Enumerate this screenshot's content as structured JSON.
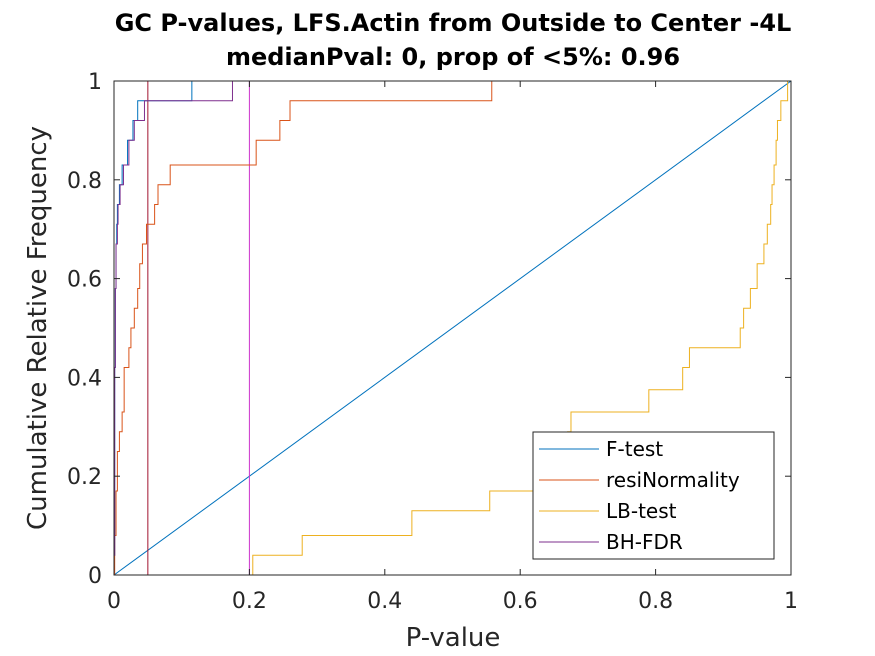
{
  "chart_data": {
    "type": "line",
    "title_line1": "GC P-values, LFS.Actin from Outside to Center -4L",
    "title_line2": "medianPval: 0, prop of <5%: 0.96",
    "xlabel": "P-value",
    "ylabel": "Cumulative Relative Frequency",
    "xlim": [
      0,
      1
    ],
    "ylim": [
      0,
      1
    ],
    "xticks": [
      0,
      0.2,
      0.4,
      0.6,
      0.8,
      1
    ],
    "xtick_labels": [
      "0",
      "0.2",
      "0.4",
      "0.6",
      "0.8",
      "1"
    ],
    "yticks": [
      0,
      0.2,
      0.4,
      0.6,
      0.8,
      1
    ],
    "ytick_labels": [
      "0",
      "0.2",
      "0.4",
      "0.6",
      "0.8",
      "1"
    ],
    "legend_position": "bottom-right",
    "series": [
      {
        "name": "F-test",
        "color": "#0072BD",
        "x": [
          0,
          0.001,
          0.002,
          0.003,
          0.004,
          0.005,
          0.007,
          0.009,
          0.012,
          0.016,
          0.02,
          0.025,
          0.03,
          0.04,
          0.05,
          0.06,
          0.08,
          0.115,
          0.2,
          0.5,
          0.8,
          1
        ],
        "y": [
          0,
          0.42,
          0.58,
          0.67,
          0.71,
          0.75,
          0.79,
          0.79,
          0.83,
          0.83,
          0.88,
          0.88,
          0.92,
          0.92,
          0.96,
          0.96,
          0.96,
          1.0,
          0.2,
          0.5,
          0.8,
          1.0
        ],
        "steps": [
          [
            0,
            0.04
          ],
          [
            0.001,
            0.42
          ],
          [
            0.002,
            0.58
          ],
          [
            0.003,
            0.67
          ],
          [
            0.004,
            0.71
          ],
          [
            0.005,
            0.75
          ],
          [
            0.008,
            0.79
          ],
          [
            0.012,
            0.83
          ],
          [
            0.02,
            0.88
          ],
          [
            0.028,
            0.92
          ],
          [
            0.035,
            0.96
          ],
          [
            0.115,
            1.0
          ]
        ]
      },
      {
        "name": "resiNormality",
        "color": "#D95319",
        "steps": [
          [
            0,
            0.0
          ],
          [
            0.001,
            0.08
          ],
          [
            0.003,
            0.17
          ],
          [
            0.005,
            0.25
          ],
          [
            0.008,
            0.29
          ],
          [
            0.012,
            0.33
          ],
          [
            0.015,
            0.42
          ],
          [
            0.022,
            0.46
          ],
          [
            0.025,
            0.5
          ],
          [
            0.03,
            0.54
          ],
          [
            0.035,
            0.58
          ],
          [
            0.038,
            0.63
          ],
          [
            0.042,
            0.67
          ],
          [
            0.048,
            0.71
          ],
          [
            0.06,
            0.75
          ],
          [
            0.065,
            0.79
          ],
          [
            0.083,
            0.83
          ],
          [
            0.21,
            0.88
          ],
          [
            0.245,
            0.92
          ],
          [
            0.26,
            0.96
          ],
          [
            0.558,
            1.0
          ]
        ]
      },
      {
        "name": "LB-test",
        "color": "#EDB120",
        "steps": [
          [
            0.2,
            0.0
          ],
          [
            0.205,
            0.04
          ],
          [
            0.278,
            0.08
          ],
          [
            0.44,
            0.13
          ],
          [
            0.555,
            0.17
          ],
          [
            0.67,
            0.29
          ],
          [
            0.675,
            0.33
          ],
          [
            0.79,
            0.375
          ],
          [
            0.84,
            0.42
          ],
          [
            0.85,
            0.46
          ],
          [
            0.925,
            0.5
          ],
          [
            0.93,
            0.54
          ],
          [
            0.94,
            0.58
          ],
          [
            0.95,
            0.63
          ],
          [
            0.96,
            0.67
          ],
          [
            0.965,
            0.71
          ],
          [
            0.97,
            0.75
          ],
          [
            0.972,
            0.79
          ],
          [
            0.975,
            0.83
          ],
          [
            0.978,
            0.88
          ],
          [
            0.98,
            0.92
          ],
          [
            0.985,
            0.96
          ],
          [
            0.995,
            1.0
          ]
        ]
      },
      {
        "name": "BH-FDR",
        "color": "#7E2F8E",
        "steps": [
          [
            0,
            0.04
          ],
          [
            0.001,
            0.42
          ],
          [
            0.002,
            0.58
          ],
          [
            0.003,
            0.67
          ],
          [
            0.005,
            0.71
          ],
          [
            0.006,
            0.75
          ],
          [
            0.009,
            0.79
          ],
          [
            0.014,
            0.83
          ],
          [
            0.022,
            0.88
          ],
          [
            0.03,
            0.92
          ],
          [
            0.045,
            0.96
          ],
          [
            0.175,
            1.0
          ]
        ]
      }
    ],
    "reference_lines": [
      {
        "label": "diagonal",
        "color": "#0072BD",
        "from": [
          0,
          0
        ],
        "to": [
          1,
          1
        ]
      },
      {
        "label": "alpha 0.05",
        "color": "#A2142F",
        "x": 0.05
      },
      {
        "label": "alpha 0.2",
        "color": "#CC33CC",
        "x": 0.2
      }
    ]
  }
}
